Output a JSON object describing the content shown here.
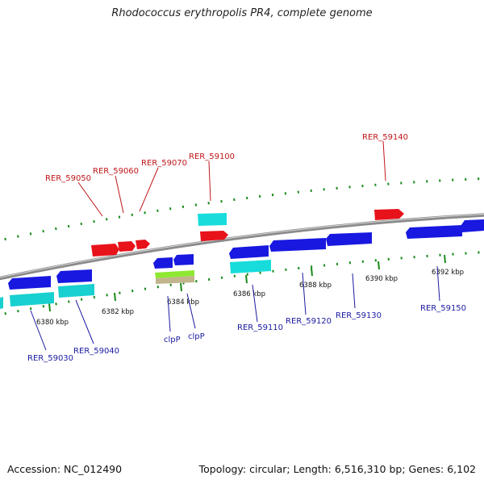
{
  "title": "Rhodococcus erythropolis PR4, complete genome",
  "accession": "Accession: NC_012490",
  "summary": "Topology: circular; Length: 6,516,310 bp; Genes: 6,102",
  "scale_labels": [
    "6380 kbp",
    "6382 kbp",
    "6384 kbp",
    "6386 kbp",
    "6388 kbp",
    "6390 kbp",
    "6392 kbp"
  ],
  "forward_genes": [
    "RER_59050",
    "RER_59060",
    "RER_59070",
    "RER_59100",
    "RER_59140"
  ],
  "reverse_genes": [
    "RER_59030",
    "RER_59040",
    "clpP",
    "clpP",
    "RER_59110",
    "RER_59120",
    "RER_59130",
    "RER_59150"
  ],
  "colors": {
    "forward": "#e8121a",
    "forward_alt": "#18dcdc",
    "reverse": "#1818e0",
    "reverse_alt": "#18d0d0",
    "rrna_green": "#8ee832",
    "rrna_tan": "#c2b48c",
    "backbone": "#8a8a8a",
    "ticks": "#1a8a1a"
  }
}
